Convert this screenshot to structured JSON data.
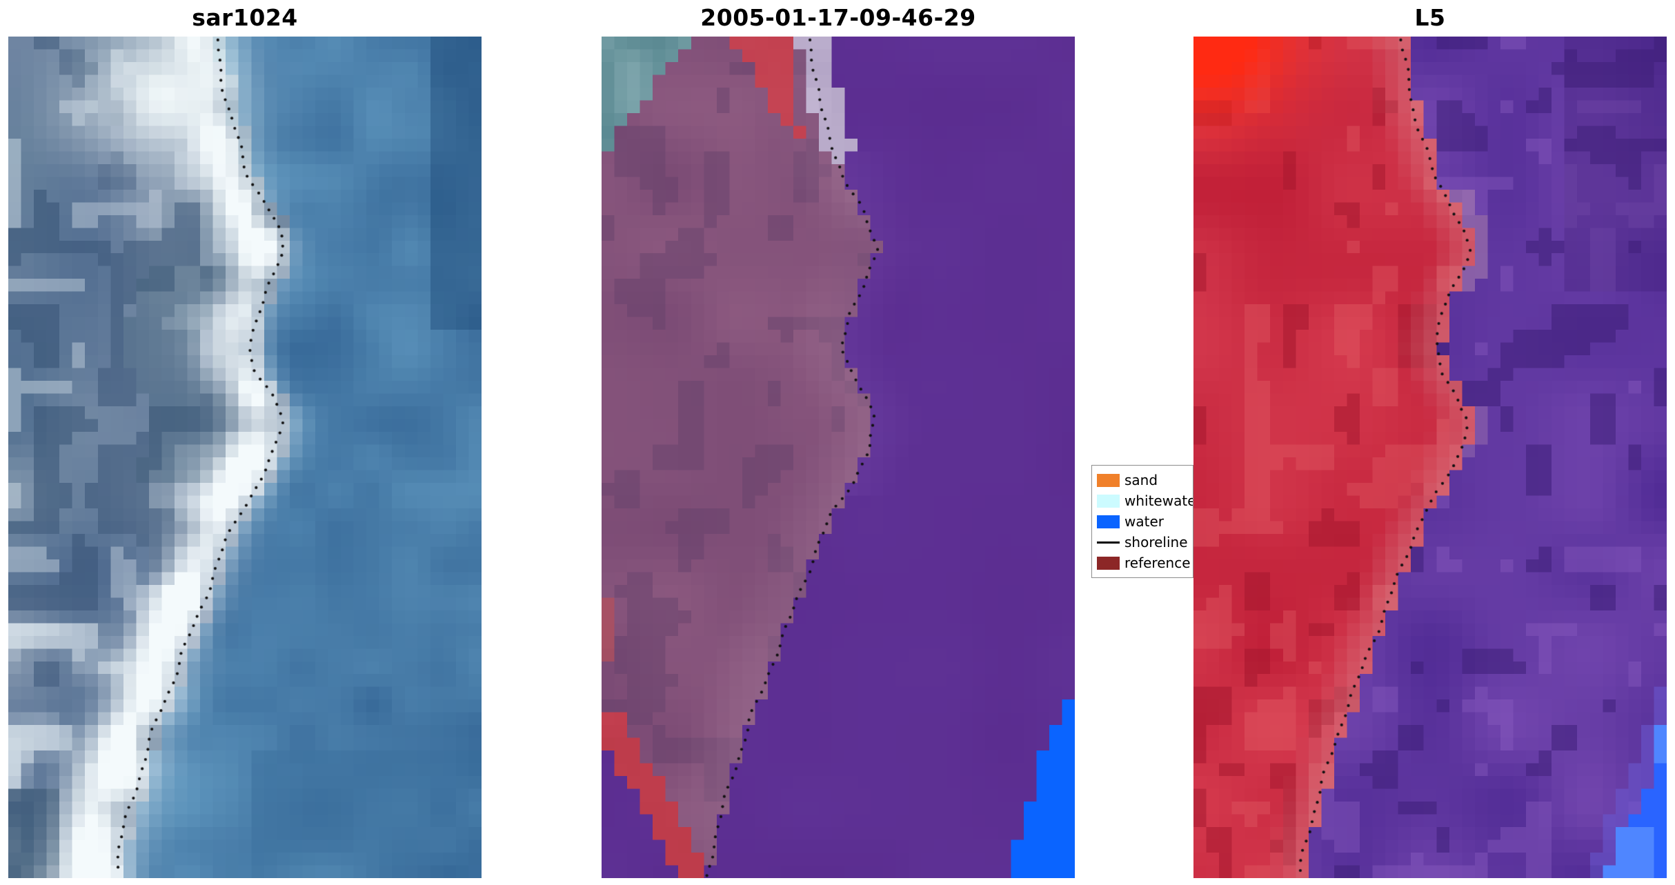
{
  "figure": {
    "background": "#ffffff"
  },
  "panels": [
    {
      "id": "sar1024",
      "title": "sar1024",
      "kind": "sar-image",
      "palette": {
        "water": "#3f74a2",
        "bright": "#f4fafc",
        "dark": "#2e4d6e"
      }
    },
    {
      "id": "classified",
      "title": "2005-01-17-09-46-29",
      "kind": "classified-image",
      "palette": {
        "water": "#5b2d90",
        "land": "#7a4a74",
        "sand_strip": "#c23f4f",
        "teal": "#55858e",
        "lavender": "#b3a5c6",
        "blue": "#0a64ff"
      }
    },
    {
      "id": "l5",
      "title": "L5",
      "kind": "landsat-image",
      "palette": {
        "land": "#c01f38",
        "water": "#5a30a0",
        "hot": "#ff2a12",
        "blue": "#2a64ff"
      }
    }
  ],
  "legend": {
    "items": [
      {
        "label": "sand",
        "swatch": "#f0802a",
        "kind": "patch"
      },
      {
        "label": "whitewater",
        "swatch": "#ccfbff",
        "kind": "patch"
      },
      {
        "label": "water",
        "swatch": "#0a64ff",
        "kind": "patch"
      },
      {
        "label": "shoreline",
        "swatch": "#000000",
        "kind": "line"
      },
      {
        "label": "reference",
        "swatch": "#8c2727",
        "kind": "patch"
      }
    ]
  },
  "chart_data": {
    "type": "heatmap",
    "title": "",
    "panel_titles": [
      "sar1024",
      "2005-01-17-09-46-29",
      "L5"
    ],
    "legend_entries": [
      "sand",
      "whitewater",
      "water",
      "shoreline",
      "reference"
    ],
    "legend_colors": {
      "sand": "#f0802a",
      "whitewater": "#ccfbff",
      "water": "#0a64ff",
      "shoreline": "#000000",
      "reference": "#8c2727"
    },
    "shoreline_normalized": [
      [
        0.44,
        0.0
      ],
      [
        0.45,
        0.04
      ],
      [
        0.46,
        0.08
      ],
      [
        0.49,
        0.13
      ],
      [
        0.51,
        0.17
      ],
      [
        0.545,
        0.2
      ],
      [
        0.575,
        0.235
      ],
      [
        0.585,
        0.255
      ],
      [
        0.555,
        0.29
      ],
      [
        0.525,
        0.33
      ],
      [
        0.51,
        0.37
      ],
      [
        0.525,
        0.4
      ],
      [
        0.56,
        0.43
      ],
      [
        0.58,
        0.455
      ],
      [
        0.565,
        0.49
      ],
      [
        0.53,
        0.53
      ],
      [
        0.49,
        0.565
      ],
      [
        0.46,
        0.6
      ],
      [
        0.43,
        0.645
      ],
      [
        0.4,
        0.69
      ],
      [
        0.37,
        0.73
      ],
      [
        0.345,
        0.77
      ],
      [
        0.315,
        0.81
      ],
      [
        0.29,
        0.855
      ],
      [
        0.26,
        0.91
      ],
      [
        0.235,
        0.96
      ],
      [
        0.225,
        1.0
      ]
    ]
  }
}
